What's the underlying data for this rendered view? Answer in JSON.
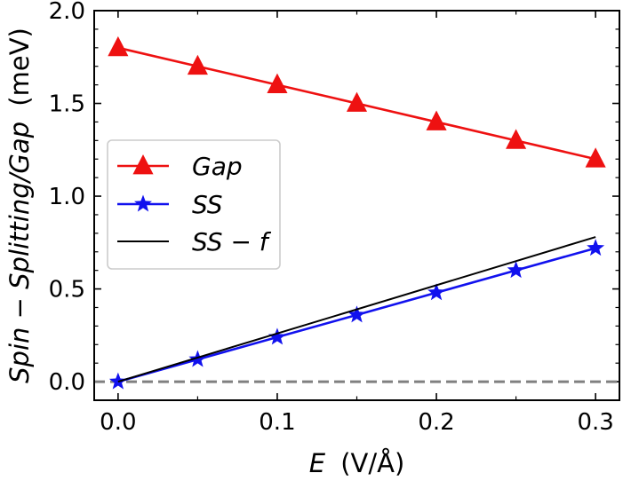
{
  "chart_data": {
    "type": "line",
    "xlabel_italic": "E",
    "xlabel_unit": "(V/Å)",
    "ylabel_italic": "Spin − Splitting/Gap",
    "ylabel_unit": "(meV)",
    "xlim": [
      -0.015,
      0.315
    ],
    "ylim": [
      -0.1,
      2.0
    ],
    "xticks": [
      0.0,
      0.1,
      0.2,
      0.3
    ],
    "xtick_labels": [
      "0.0",
      "0.1",
      "0.2",
      "0.3"
    ],
    "xminor": [
      0.05,
      0.15,
      0.25
    ],
    "yticks": [
      0.0,
      0.5,
      1.0,
      1.5,
      2.0
    ],
    "ytick_labels": [
      "0.0",
      "0.5",
      "1.0",
      "1.5",
      "2.0"
    ],
    "yminor": [
      0.1,
      0.2,
      0.3,
      0.4,
      0.6,
      0.7,
      0.8,
      0.9,
      1.1,
      1.2,
      1.3,
      1.4,
      1.6,
      1.7,
      1.8,
      1.9
    ],
    "legend_position": "center-left",
    "reference_line": {
      "y": 0.0,
      "style": "dashed",
      "color": "#808080"
    },
    "series": [
      {
        "name": "Gap",
        "color": "#ee1111",
        "marker": "triangle",
        "x": [
          0.0,
          0.05,
          0.1,
          0.15,
          0.2,
          0.25,
          0.3
        ],
        "y": [
          1.8,
          1.7,
          1.6,
          1.5,
          1.4,
          1.3,
          1.2
        ]
      },
      {
        "name": "SS",
        "color": "#1111ee",
        "marker": "star",
        "x": [
          0.0,
          0.05,
          0.1,
          0.15,
          0.2,
          0.25,
          0.3
        ],
        "y": [
          0.0,
          0.12,
          0.24,
          0.36,
          0.48,
          0.6,
          0.72
        ]
      },
      {
        "name": "SS − f",
        "color": "#000000",
        "marker": "none",
        "x": [
          0.0,
          0.3
        ],
        "y": [
          0.0,
          0.78
        ]
      }
    ]
  }
}
